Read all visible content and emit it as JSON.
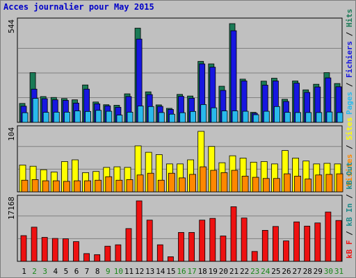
{
  "title": "Acces journalier pour May 2015",
  "colors": {
    "hits": "#1a7a56",
    "files": "#1717e0",
    "pages": "#29b9ec",
    "visits": "#ffff00",
    "sites": "#ff8800",
    "kbin": "#1f8a8a",
    "kbout": "#1f8a8a",
    "kbf": "#ee1111",
    "title": "#0000c8",
    "weekend_day": "#188818",
    "weekday_day": "#000000",
    "panel_bg": "#c0c0c0",
    "grid": "#808080"
  },
  "chart_data": [
    {
      "type": "bar",
      "name": "hits-files-pages",
      "ymax_label": "544",
      "ylim": [
        0,
        544
      ],
      "categories": [
        "1",
        "2",
        "3",
        "4",
        "5",
        "6",
        "7",
        "8",
        "9",
        "10",
        "11",
        "12",
        "13",
        "14",
        "15",
        "16",
        "17",
        "18",
        "19",
        "20",
        "21",
        "22",
        "23",
        "24",
        "25",
        "26",
        "27",
        "28",
        "29",
        "30",
        "31"
      ],
      "series": [
        {
          "name": "Hits",
          "values": [
            104,
            274,
            142,
            137,
            131,
            124,
            206,
            112,
            97,
            94,
            157,
            519,
            168,
            96,
            77,
            154,
            145,
            336,
            322,
            199,
            544,
            238,
            55,
            227,
            243,
            127,
            228,
            179,
            210,
            274,
            214
          ]
        },
        {
          "name": "Fichiers",
          "values": [
            89,
            183,
            130,
            124,
            121,
            106,
            183,
            102,
            91,
            83,
            142,
            459,
            153,
            88,
            71,
            143,
            133,
            322,
            304,
            176,
            505,
            228,
            50,
            205,
            228,
            115,
            216,
            165,
            195,
            245,
            196
          ]
        },
        {
          "name": "Pages",
          "values": [
            53,
            132,
            55,
            56,
            56,
            63,
            60,
            66,
            61,
            40,
            56,
            90,
            87,
            54,
            45,
            53,
            60,
            98,
            80,
            63,
            63,
            61,
            42,
            61,
            87,
            55,
            54,
            54,
            54,
            57,
            54
          ]
        }
      ],
      "right_labels": [
        "Pages",
        "Fichiers",
        "Hits"
      ]
    },
    {
      "type": "bar",
      "name": "visits-sites",
      "ymax_label": "104",
      "ylim": [
        0,
        104
      ],
      "categories": [
        "1",
        "2",
        "3",
        "4",
        "5",
        "6",
        "7",
        "8",
        "9",
        "10",
        "11",
        "12",
        "13",
        "14",
        "15",
        "16",
        "17",
        "18",
        "19",
        "20",
        "21",
        "22",
        "23",
        "24",
        "25",
        "26",
        "27",
        "28",
        "29",
        "30",
        "31"
      ],
      "series": [
        {
          "name": "Visites",
          "values": [
            46,
            44,
            38,
            34,
            52,
            55,
            33,
            35,
            42,
            43,
            42,
            79,
            68,
            64,
            48,
            48,
            55,
            104,
            78,
            50,
            62,
            58,
            51,
            52,
            48,
            71,
            58,
            53,
            48,
            49,
            48
          ]
        },
        {
          "name": "Sites",
          "values": [
            20,
            21,
            19,
            19,
            18,
            19,
            19,
            20,
            26,
            20,
            21,
            29,
            32,
            20,
            32,
            24,
            30,
            43,
            37,
            33,
            37,
            27,
            25,
            23,
            23,
            31,
            27,
            22,
            29,
            30,
            31
          ]
        }
      ],
      "right_labels": [
        "Visites",
        "Sites"
      ]
    },
    {
      "type": "bar",
      "name": "kbytes",
      "ymax_label": "17168",
      "ylim": [
        0,
        17168
      ],
      "categories": [
        "1",
        "2",
        "3",
        "4",
        "5",
        "6",
        "7",
        "8",
        "9",
        "10",
        "11",
        "12",
        "13",
        "14",
        "15",
        "16",
        "17",
        "18",
        "19",
        "20",
        "21",
        "22",
        "23",
        "24",
        "25",
        "26",
        "27",
        "28",
        "29",
        "30",
        "31"
      ],
      "series": [
        {
          "name": "KB F",
          "values": [
            7300,
            9700,
            6800,
            6500,
            6400,
            5600,
            2200,
            1900,
            4300,
            4700,
            9300,
            17168,
            11700,
            4700,
            1300,
            8200,
            8200,
            11700,
            12200,
            7200,
            15500,
            12300,
            2800,
            8800,
            9900,
            5800,
            11200,
            10000,
            10900,
            14000,
            11600
          ]
        }
      ],
      "right_labels": [
        "kB F",
        "kB In",
        "kB Out"
      ]
    }
  ],
  "x_labels": [
    {
      "text": "1",
      "weekend": false
    },
    {
      "text": "2",
      "weekend": true
    },
    {
      "text": "3",
      "weekend": true
    },
    {
      "text": "4",
      "weekend": false
    },
    {
      "text": "5",
      "weekend": false
    },
    {
      "text": "6",
      "weekend": false
    },
    {
      "text": "7",
      "weekend": false
    },
    {
      "text": "8",
      "weekend": false
    },
    {
      "text": "9",
      "weekend": true
    },
    {
      "text": "10",
      "weekend": true
    },
    {
      "text": "11",
      "weekend": false
    },
    {
      "text": "12",
      "weekend": false
    },
    {
      "text": "13",
      "weekend": false
    },
    {
      "text": "14",
      "weekend": false
    },
    {
      "text": "15",
      "weekend": false
    },
    {
      "text": "16",
      "weekend": true
    },
    {
      "text": "17",
      "weekend": true
    },
    {
      "text": "18",
      "weekend": false
    },
    {
      "text": "19",
      "weekend": false
    },
    {
      "text": "20",
      "weekend": false
    },
    {
      "text": "21",
      "weekend": false
    },
    {
      "text": "22",
      "weekend": false
    },
    {
      "text": "23",
      "weekend": true
    },
    {
      "text": "24",
      "weekend": true
    },
    {
      "text": "25",
      "weekend": false
    },
    {
      "text": "26",
      "weekend": false
    },
    {
      "text": "27",
      "weekend": false
    },
    {
      "text": "28",
      "weekend": false
    },
    {
      "text": "29",
      "weekend": false
    },
    {
      "text": "30",
      "weekend": true
    },
    {
      "text": "31",
      "weekend": true
    }
  ]
}
